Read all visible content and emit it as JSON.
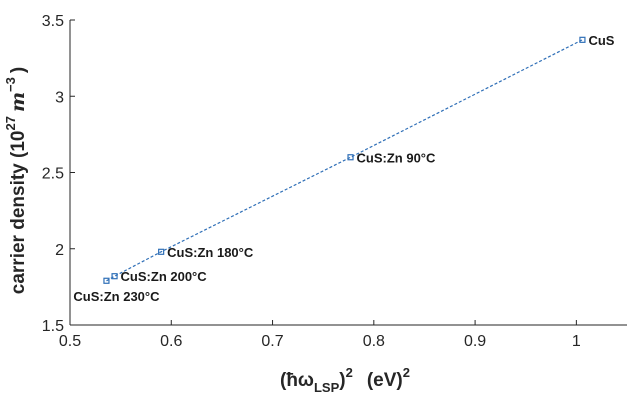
{
  "chart_data": {
    "type": "scatter",
    "title": "",
    "xlabel": {
      "base": "(ħω",
      "sub": "LSP",
      "close": ")",
      "sup1": "2",
      "unit": "(eV)",
      "sup2": "2"
    },
    "ylabel": {
      "pre": "carrier density (10",
      "sup": "27",
      "unit": "m",
      "sup2": "−3",
      "post": ")"
    },
    "xlim": [
      0.5,
      1.05
    ],
    "ylim": [
      1.5,
      3.5
    ],
    "xticks": [
      0.5,
      0.6,
      0.7,
      0.8,
      0.9,
      1.0
    ],
    "xtick_labels": [
      "0.5",
      "0.6",
      "0.7",
      "0.8",
      "0.9",
      "1"
    ],
    "yticks": [
      1.5,
      2.0,
      2.5,
      3.0,
      3.5
    ],
    "ytick_labels": [
      "1.5",
      "2",
      "2.5",
      "3",
      "3.5"
    ],
    "grid": false,
    "line_style": "dashed",
    "color": "#2f6fb7",
    "points": [
      {
        "x": 0.536,
        "y": 1.79,
        "label": "CuS:Zn   230°C",
        "label_pos": "below-left"
      },
      {
        "x": 0.544,
        "y": 1.82,
        "label": "CuS:Zn   200°C",
        "label_pos": "right"
      },
      {
        "x": 0.59,
        "y": 1.98,
        "label": "CuS:Zn   180°C",
        "label_pos": "right"
      },
      {
        "x": 0.777,
        "y": 2.6,
        "label": "CuS:Zn   90°C",
        "label_pos": "right"
      },
      {
        "x": 1.006,
        "y": 3.37,
        "label": "CuS",
        "label_pos": "right"
      }
    ]
  }
}
